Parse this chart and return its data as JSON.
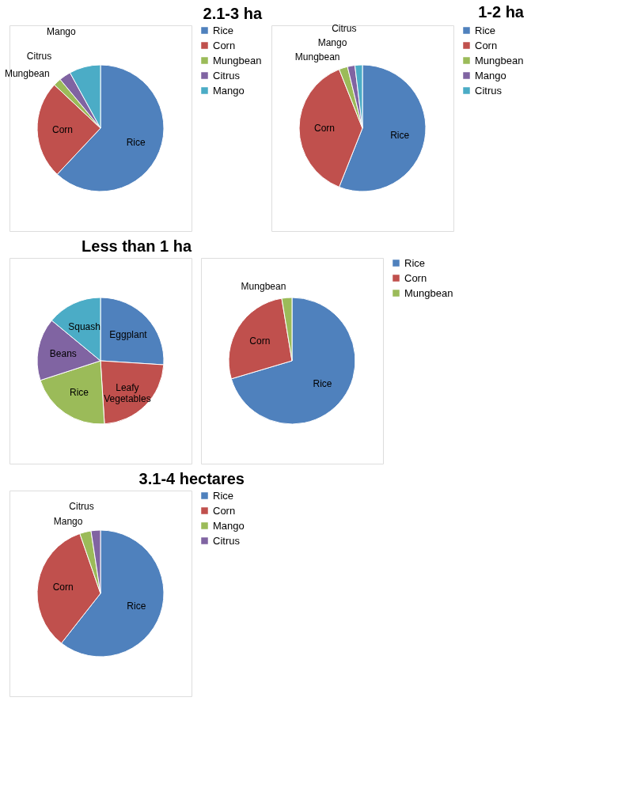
{
  "chart_data": [
    {
      "type": "pie",
      "title": "2.1-3 ha",
      "categories": [
        "Rice",
        "Corn",
        "Mungbean",
        "Citrus",
        "Mango"
      ],
      "values": [
        62,
        25,
        2,
        3,
        8
      ],
      "colors": [
        "#4f81bd",
        "#c0504d",
        "#9bbb59",
        "#8064a2",
        "#4bacc6"
      ],
      "legend": "right"
    },
    {
      "type": "pie",
      "title": "1-2 ha",
      "categories": [
        "Rice",
        "Corn",
        "Mungbean",
        "Mango",
        "Citrus"
      ],
      "values": [
        56,
        38,
        2.2,
        1.9,
        1.9
      ],
      "colors": [
        "#4f81bd",
        "#c0504d",
        "#9bbb59",
        "#8064a2",
        "#4bacc6"
      ],
      "legend": "right"
    },
    {
      "type": "pie",
      "title": "Less than 1 ha",
      "categories": [
        "Eggplant",
        "Leafy Vegetables",
        "Rice",
        "Beans",
        "Squash"
      ],
      "values": [
        26,
        23,
        21,
        16,
        14
      ],
      "colors": [
        "#4f81bd",
        "#c0504d",
        "#9bbb59",
        "#8064a2",
        "#4bacc6"
      ]
    },
    {
      "type": "pie",
      "categories": [
        "Rice",
        "Corn",
        "Mungbean"
      ],
      "values": [
        70.4,
        27,
        2.6
      ],
      "colors": [
        "#4f81bd",
        "#c0504d",
        "#9bbb59"
      ],
      "legend": "right"
    },
    {
      "type": "pie",
      "title": "3.1-4 hectares",
      "categories": [
        "Rice",
        "Corn",
        "Mango",
        "Citrus"
      ],
      "values": [
        60.6,
        34.1,
        2.9,
        2.4
      ],
      "colors": [
        "#4f81bd",
        "#c0504d",
        "#9bbb59",
        "#8064a2"
      ],
      "legend": "right"
    }
  ]
}
